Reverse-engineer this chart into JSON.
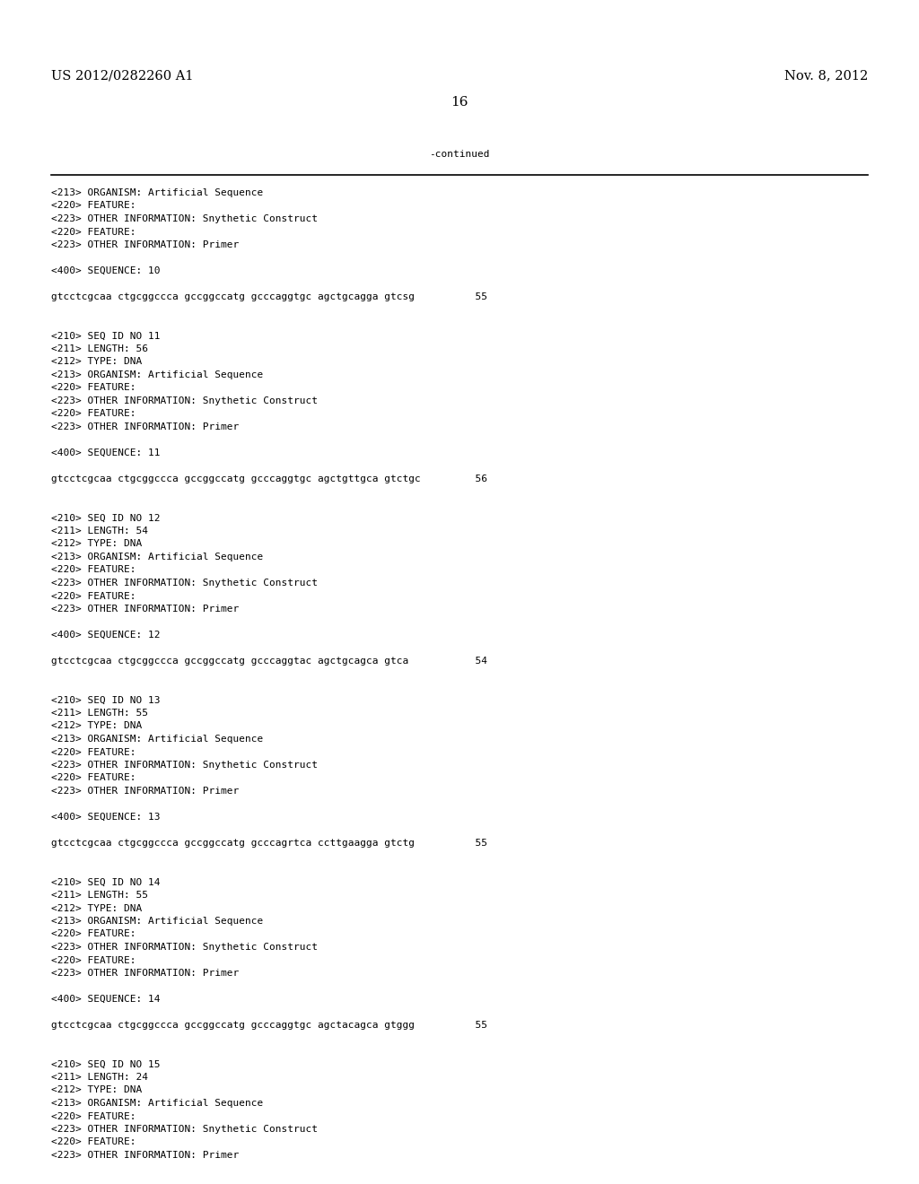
{
  "header_left": "US 2012/0282260 A1",
  "header_right": "Nov. 8, 2012",
  "page_number": "16",
  "continued_label": "-continued",
  "background_color": "#ffffff",
  "text_color": "#000000",
  "font_size_header": 10.5,
  "font_size_body": 8.0,
  "font_size_page": 11,
  "content_lines": [
    "<213> ORGANISM: Artificial Sequence",
    "<220> FEATURE:",
    "<223> OTHER INFORMATION: Snythetic Construct",
    "<220> FEATURE:",
    "<223> OTHER INFORMATION: Primer",
    "",
    "<400> SEQUENCE: 10",
    "",
    "gtcctcgcaa ctgcggccca gccggccatg gcccaggtgc agctgcagga gtcsg          55",
    "",
    "",
    "<210> SEQ ID NO 11",
    "<211> LENGTH: 56",
    "<212> TYPE: DNA",
    "<213> ORGANISM: Artificial Sequence",
    "<220> FEATURE:",
    "<223> OTHER INFORMATION: Snythetic Construct",
    "<220> FEATURE:",
    "<223> OTHER INFORMATION: Primer",
    "",
    "<400> SEQUENCE: 11",
    "",
    "gtcctcgcaa ctgcggccca gccggccatg gcccaggtgc agctgttgca gtctgc         56",
    "",
    "",
    "<210> SEQ ID NO 12",
    "<211> LENGTH: 54",
    "<212> TYPE: DNA",
    "<213> ORGANISM: Artificial Sequence",
    "<220> FEATURE:",
    "<223> OTHER INFORMATION: Snythetic Construct",
    "<220> FEATURE:",
    "<223> OTHER INFORMATION: Primer",
    "",
    "<400> SEQUENCE: 12",
    "",
    "gtcctcgcaa ctgcggccca gccggccatg gcccaggtac agctgcagca gtca           54",
    "",
    "",
    "<210> SEQ ID NO 13",
    "<211> LENGTH: 55",
    "<212> TYPE: DNA",
    "<213> ORGANISM: Artificial Sequence",
    "<220> FEATURE:",
    "<223> OTHER INFORMATION: Snythetic Construct",
    "<220> FEATURE:",
    "<223> OTHER INFORMATION: Primer",
    "",
    "<400> SEQUENCE: 13",
    "",
    "gtcctcgcaa ctgcggccca gccggccatg gcccagrtca ccttgaagga gtctg          55",
    "",
    "",
    "<210> SEQ ID NO 14",
    "<211> LENGTH: 55",
    "<212> TYPE: DNA",
    "<213> ORGANISM: Artificial Sequence",
    "<220> FEATURE:",
    "<223> OTHER INFORMATION: Snythetic Construct",
    "<220> FEATURE:",
    "<223> OTHER INFORMATION: Primer",
    "",
    "<400> SEQUENCE: 14",
    "",
    "gtcctcgcaa ctgcggccca gccggccatg gcccaggtgc agctacagca gtggg          55",
    "",
    "",
    "<210> SEQ ID NO 15",
    "<211> LENGTH: 24",
    "<212> TYPE: DNA",
    "<213> ORGANISM: Artificial Sequence",
    "<220> FEATURE:",
    "<223> OTHER INFORMATION: Snythetic Construct",
    "<220> FEATURE:",
    "<223> OTHER INFORMATION: Primer"
  ]
}
